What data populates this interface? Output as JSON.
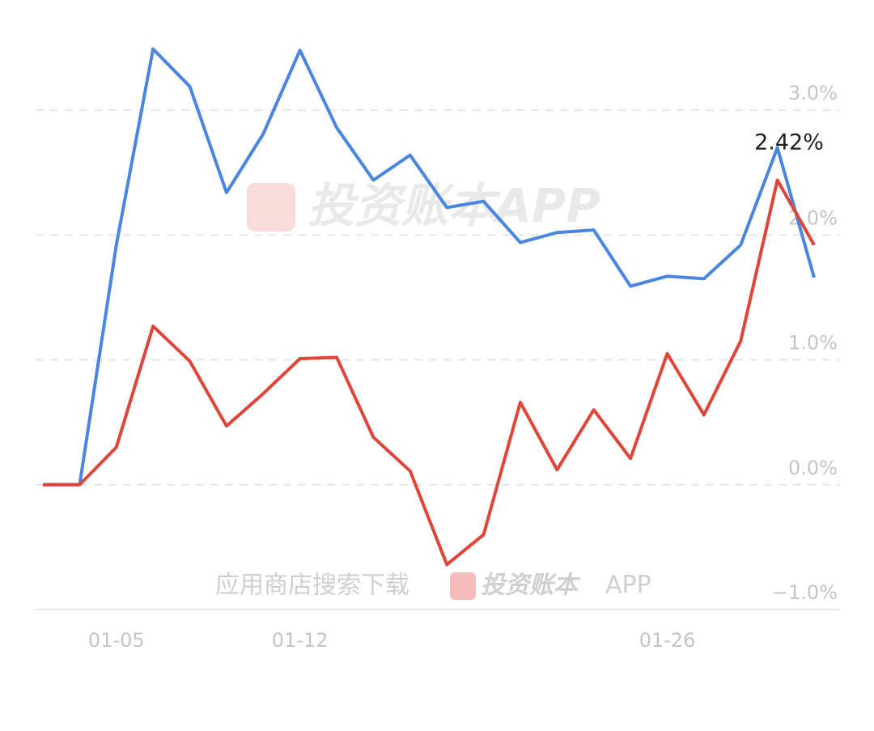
{
  "chart_data": {
    "type": "line",
    "categories": [
      null,
      null,
      "01-05",
      null,
      null,
      null,
      null,
      "01-12",
      null,
      null,
      null,
      null,
      null,
      null,
      null,
      null,
      null,
      "01-26",
      null,
      null,
      null,
      null
    ],
    "series": [
      {
        "name": null,
        "color": "#4a86e0",
        "values": [
          0,
          0,
          1.92,
          3.49,
          3.19,
          2.34,
          2.81,
          3.48,
          2.86,
          2.44,
          2.64,
          2.22,
          2.27,
          1.94,
          2.02,
          2.04,
          1.59,
          1.67,
          1.65,
          1.92,
          2.7,
          1.66
        ]
      },
      {
        "name": null,
        "color": "#e0453a",
        "values": [
          0,
          0,
          0.3,
          1.27,
          0.99,
          0.47,
          0.73,
          1.01,
          1.02,
          0.38,
          0.11,
          -0.64,
          -0.4,
          0.66,
          0.12,
          0.6,
          0.21,
          1.05,
          0.56,
          1.15,
          2.44,
          1.92
        ]
      }
    ],
    "ylim": [
      -1.0,
      3.5
    ],
    "yticks": [
      {
        "value": -1.0,
        "label": "−1.0%"
      },
      {
        "value": 0.0,
        "label": "0.0%"
      },
      {
        "value": 1.0,
        "label": "1.0%"
      },
      {
        "value": 2.0,
        "label": "2.0%"
      },
      {
        "value": 3.0,
        "label": "3.0%"
      }
    ],
    "grid": true,
    "annotation": "2.42%",
    "watermark": "投资账本APP",
    "watermark_bottom": "应用商店搜索下载",
    "watermark_bottom_brand": "投资账本",
    "watermark_bottom_app": "APP"
  }
}
